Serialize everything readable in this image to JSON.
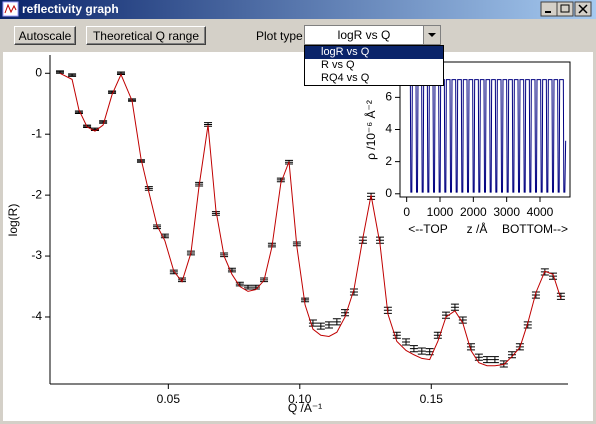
{
  "window": {
    "title": "reflectivity graph"
  },
  "toolbar": {
    "buttons": [
      "Autoscale",
      "Theoretical Q range"
    ],
    "plot_type_label": "Plot type",
    "plot_type_selected": "logR vs Q",
    "plot_type_options": [
      "logR vs Q",
      "R vs Q",
      "RQ4 vs Q"
    ]
  },
  "chart_data": [
    {
      "type": "line",
      "xlabel": "Q /A⁻¹",
      "ylabel": "log(R)",
      "xlim": [
        0.005,
        0.202
      ],
      "ylim": [
        -5.1,
        0.3
      ],
      "xticks": [
        0.05,
        {
          "value": 0.1,
          "label": "0.10"
        },
        0.15
      ],
      "yticks": [
        -4,
        -3,
        -2,
        -1,
        0
      ],
      "x": [
        0.0088,
        0.0134,
        0.016,
        0.0191,
        0.0221,
        0.0252,
        0.0286,
        0.032,
        0.0362,
        0.0396,
        0.0426,
        0.0457,
        0.0487,
        0.0521,
        0.0552,
        0.0586,
        0.0617,
        0.0651,
        0.0681,
        0.0712,
        0.0742,
        0.0772,
        0.0803,
        0.0833,
        0.0864,
        0.0894,
        0.0928,
        0.0959,
        0.0989,
        0.102,
        0.105,
        0.108,
        0.1111,
        0.1141,
        0.1172,
        0.1206,
        0.124,
        0.1271,
        0.1305,
        0.1335,
        0.1369,
        0.1404,
        0.1434,
        0.1464,
        0.1494,
        0.1525,
        0.1556,
        0.159,
        0.162,
        0.1651,
        0.1681,
        0.1712,
        0.1742,
        0.1776,
        0.1807,
        0.1837,
        0.1867,
        0.1898,
        0.1932,
        0.1963,
        0.1993
      ],
      "series": [
        {
          "style": "errorbar",
          "color": "#000000",
          "values": [
            0.02,
            -0.03,
            -0.64,
            -0.87,
            -0.92,
            -0.8,
            -0.31,
            0.0,
            -0.44,
            -1.44,
            -1.89,
            -2.52,
            -2.67,
            -3.26,
            -3.39,
            -2.95,
            -1.82,
            -0.84,
            -2.3,
            -2.98,
            -3.23,
            -3.46,
            -3.51,
            -3.51,
            -3.39,
            -2.82,
            -1.75,
            -1.46,
            -2.8,
            -3.72,
            -4.1,
            -4.15,
            -4.13,
            -4.08,
            -3.93,
            -3.59,
            -2.74,
            -2.02,
            -2.74,
            -3.89,
            -4.3,
            -4.41,
            -4.52,
            -4.56,
            -4.57,
            -4.3,
            -3.97,
            -3.84,
            -4.05,
            -4.49,
            -4.66,
            -4.7,
            -4.7,
            -4.77,
            -4.62,
            -4.49,
            -4.13,
            -3.64,
            -3.26,
            -3.33,
            -3.66
          ],
          "errors": [
            0.02,
            0.02,
            0.02,
            0.02,
            0.02,
            0.02,
            0.02,
            0.02,
            0.02,
            0.02,
            0.03,
            0.03,
            0.03,
            0.03,
            0.03,
            0.03,
            0.03,
            0.03,
            0.03,
            0.03,
            0.03,
            0.03,
            0.03,
            0.03,
            0.03,
            0.03,
            0.03,
            0.03,
            0.03,
            0.03,
            0.05,
            0.05,
            0.05,
            0.05,
            0.05,
            0.05,
            0.05,
            0.05,
            0.05,
            0.05,
            0.05,
            0.05,
            0.05,
            0.05,
            0.05,
            0.05,
            0.05,
            0.05,
            0.05,
            0.05,
            0.05,
            0.05,
            0.05,
            0.05,
            0.05,
            0.05,
            0.05,
            0.05,
            0.05,
            0.05,
            0.05
          ]
        },
        {
          "style": "line",
          "color": "#c00000",
          "values": [
            0.0,
            -0.1,
            -0.6,
            -0.88,
            -0.95,
            -0.85,
            -0.35,
            -0.02,
            -0.45,
            -1.4,
            -1.95,
            -2.5,
            -2.75,
            -3.25,
            -3.42,
            -2.95,
            -1.85,
            -0.85,
            -2.25,
            -3.0,
            -3.3,
            -3.5,
            -3.58,
            -3.55,
            -3.4,
            -2.85,
            -1.8,
            -1.45,
            -2.85,
            -3.8,
            -4.2,
            -4.3,
            -4.32,
            -4.25,
            -4.0,
            -3.55,
            -2.7,
            -2.0,
            -2.8,
            -3.95,
            -4.4,
            -4.55,
            -4.62,
            -4.68,
            -4.7,
            -4.4,
            -4.0,
            -3.9,
            -4.1,
            -4.55,
            -4.75,
            -4.8,
            -4.8,
            -4.78,
            -4.65,
            -4.5,
            -4.1,
            -3.6,
            -3.25,
            -3.3,
            -3.7
          ]
        }
      ]
    },
    {
      "type": "line",
      "xlabel": "z /Å",
      "ylabel": "ρ /10⁻⁶ Å⁻²",
      "annotations": [
        "<--TOP",
        "BOTTOM-->"
      ],
      "xlim": [
        -200,
        4900
      ],
      "ylim": [
        -0.2,
        8.2
      ],
      "xticks": [
        0,
        1000,
        2000,
        3000,
        4000
      ],
      "yticks": [
        0,
        2,
        4,
        6
      ],
      "x": [
        0,
        110,
        125,
        155,
        170,
        280,
        295,
        325,
        340,
        450,
        465,
        495,
        510,
        620,
        635,
        665,
        680,
        790,
        805,
        835,
        850,
        960,
        975,
        1005,
        1020,
        1130,
        1145,
        1175,
        1190,
        1300,
        1315,
        1345,
        1360,
        1470,
        1485,
        1515,
        1530,
        1640,
        1655,
        1685,
        1700,
        1810,
        1825,
        1855,
        1870,
        1980,
        1995,
        2025,
        2040,
        2150,
        2165,
        2195,
        2210,
        2320,
        2335,
        2365,
        2380,
        2490,
        2505,
        2535,
        2550,
        2660,
        2675,
        2705,
        2720,
        2830,
        2845,
        2875,
        2890,
        3000,
        3015,
        3045,
        3060,
        3170,
        3185,
        3215,
        3230,
        3340,
        3355,
        3385,
        3400,
        3510,
        3525,
        3555,
        3570,
        3680,
        3695,
        3725,
        3740,
        3850,
        3865,
        3895,
        3910,
        4020,
        4035,
        4065,
        4080,
        4190,
        4205,
        4235,
        4250,
        4360,
        4375,
        4405,
        4420,
        4530,
        4545,
        4575,
        4590,
        4700,
        4715,
        4745,
        4770
      ],
      "series": [
        {
          "style": "line",
          "color": "#000080",
          "values": [
            7.1,
            7.1,
            0.1,
            0.1,
            7.1,
            7.1,
            0.1,
            0.1,
            7.1,
            7.1,
            0.1,
            0.1,
            7.1,
            7.1,
            0.1,
            0.1,
            7.1,
            7.1,
            0.1,
            0.1,
            7.1,
            7.1,
            0.1,
            0.1,
            7.1,
            7.1,
            0.1,
            0.1,
            7.1,
            7.1,
            0.1,
            0.1,
            7.1,
            7.1,
            0.1,
            0.1,
            7.1,
            7.1,
            0.1,
            0.1,
            7.1,
            7.1,
            0.1,
            0.1,
            7.1,
            7.1,
            0.1,
            0.1,
            7.1,
            7.1,
            0.1,
            0.1,
            7.1,
            7.1,
            0.1,
            0.1,
            7.1,
            7.1,
            0.1,
            0.1,
            7.1,
            7.1,
            0.1,
            0.1,
            7.1,
            7.1,
            0.1,
            0.1,
            7.1,
            7.1,
            0.1,
            0.1,
            7.1,
            7.1,
            0.1,
            0.1,
            7.1,
            7.1,
            0.1,
            0.1,
            7.1,
            7.1,
            0.1,
            0.1,
            7.1,
            7.1,
            0.1,
            0.1,
            7.1,
            7.1,
            0.1,
            0.1,
            7.1,
            7.1,
            0.1,
            0.1,
            7.1,
            7.1,
            0.1,
            0.1,
            7.1,
            7.1,
            0.1,
            0.1,
            7.1,
            7.1,
            0.1,
            0.1,
            7.1,
            7.1,
            0.1,
            0.1,
            3.3
          ]
        }
      ]
    }
  ]
}
